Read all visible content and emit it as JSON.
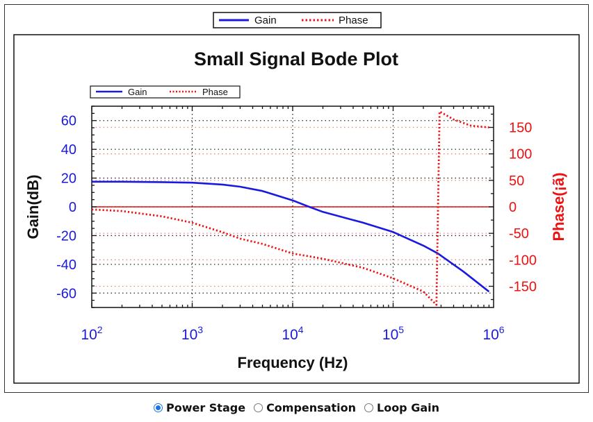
{
  "chart_data": {
    "type": "line",
    "title": "Small Signal Bode Plot",
    "xlabel": "Frequency (Hz)",
    "ylabel_left": "Gain(dB)",
    "ylabel_right": "Phase(¡ã)",
    "xscale": "log",
    "xlim": [
      100,
      1000000
    ],
    "ylim_left": [
      -70,
      70
    ],
    "ylim_right": [
      -190,
      190
    ],
    "x_ticks": [
      {
        "base": "10",
        "exp": "2"
      },
      {
        "base": "10",
        "exp": "3"
      },
      {
        "base": "10",
        "exp": "4"
      },
      {
        "base": "10",
        "exp": "5"
      },
      {
        "base": "10",
        "exp": "6"
      }
    ],
    "y_ticks_left": [
      "60",
      "40",
      "20",
      "0",
      "-20",
      "-40",
      "-60"
    ],
    "y_tick_values_left": [
      60,
      40,
      20,
      0,
      -20,
      -40,
      -60
    ],
    "y_ticks_right": [
      "150",
      "100",
      "50",
      "0",
      "-50",
      "-100",
      "-150"
    ],
    "y_tick_values_right": [
      150,
      100,
      50,
      0,
      -50,
      -100,
      -150
    ],
    "legend_outer": [
      "Gain",
      "Phase"
    ],
    "legend_inner": [
      "Gain",
      "Phase"
    ],
    "zero_line": 0,
    "series": [
      {
        "name": "Gain",
        "axis": "left",
        "color": "#1a1adf",
        "style": "solid",
        "x": [
          100,
          200,
          500,
          1000,
          2000,
          3000,
          5000,
          10000,
          14000,
          20000,
          50000,
          100000,
          200000,
          280000,
          500000,
          900000
        ],
        "y": [
          17.5,
          17.5,
          17.2,
          16.8,
          15.5,
          14.0,
          11.0,
          4.5,
          0.5,
          -3.5,
          -11.0,
          -17.5,
          -27.0,
          -32.5,
          -45.0,
          -59.0
        ]
      },
      {
        "name": "Phase",
        "axis": "right",
        "color": "#ee1111",
        "style": "dotted",
        "x": [
          100,
          200,
          500,
          1000,
          2000,
          3000,
          5000,
          10000,
          20000,
          50000,
          100000,
          200000,
          270000,
          280000,
          290000,
          400000,
          600000,
          900000
        ],
        "y": [
          -5,
          -8,
          -18,
          -30,
          -48,
          -60,
          -70,
          -88,
          -98,
          -115,
          -135,
          -160,
          -185,
          0,
          180,
          165,
          153,
          150
        ]
      }
    ]
  },
  "selector": {
    "options": [
      {
        "label": "Power Stage",
        "selected": true
      },
      {
        "label": "Compensation",
        "selected": false
      },
      {
        "label": "Loop Gain",
        "selected": false
      }
    ]
  }
}
